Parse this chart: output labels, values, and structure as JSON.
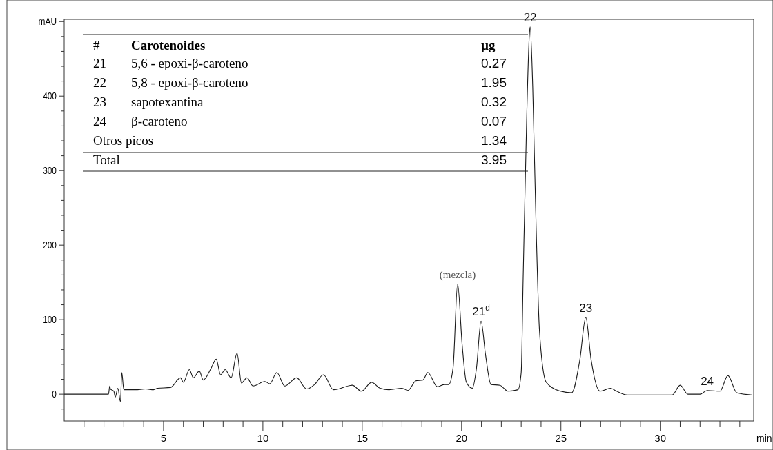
{
  "chart_data": {
    "type": "line",
    "xlim": [
      0,
      34.7
    ],
    "ylim": [
      -36,
      503
    ],
    "xlabel": "min",
    "xticks": [
      {
        "value": 1,
        "label": null
      },
      {
        "value": 2,
        "label": null
      },
      {
        "value": 3,
        "label": null
      },
      {
        "value": 4,
        "label": null
      },
      5,
      {
        "value": 6,
        "label": null
      },
      {
        "value": 7,
        "label": null
      },
      {
        "value": 8,
        "label": null
      },
      {
        "value": 9,
        "label": null
      },
      10,
      {
        "value": 11,
        "label": null
      },
      {
        "value": 12,
        "label": null
      },
      {
        "value": 13,
        "label": null
      },
      {
        "value": 14,
        "label": null
      },
      15,
      {
        "value": 16,
        "label": null
      },
      {
        "value": 17,
        "label": null
      },
      {
        "value": 18,
        "label": null
      },
      {
        "value": 19,
        "label": null
      },
      20,
      {
        "value": 21,
        "label": null
      },
      {
        "value": 22,
        "label": null
      },
      {
        "value": 23,
        "label": null
      },
      {
        "value": 24,
        "label": null
      },
      25,
      {
        "value": 26,
        "label": null
      },
      {
        "value": 27,
        "label": null
      },
      {
        "value": 28,
        "label": null
      },
      {
        "value": 29,
        "label": null
      },
      30,
      {
        "value": 31,
        "label": null
      },
      {
        "value": 32,
        "label": null
      },
      {
        "value": 33,
        "label": null
      },
      {
        "value": 34,
        "label": null
      }
    ],
    "yticks": [
      {
        "value": -20,
        "label": null
      },
      0,
      {
        "value": 20,
        "label": null
      },
      {
        "value": 40,
        "label": null
      },
      {
        "value": 60,
        "label": null
      },
      {
        "value": 80,
        "label": null
      },
      100,
      {
        "value": 120,
        "label": null
      },
      {
        "value": 140,
        "label": null
      },
      {
        "value": 160,
        "label": null
      },
      {
        "value": 180,
        "label": null
      },
      200,
      {
        "value": 220,
        "label": null
      },
      {
        "value": 240,
        "label": null
      },
      {
        "value": 260,
        "label": null
      },
      {
        "value": 280,
        "label": null
      },
      300,
      {
        "value": 320,
        "label": null
      },
      {
        "value": 340,
        "label": null
      },
      {
        "value": 360,
        "label": null
      },
      {
        "value": 380,
        "label": null
      },
      400,
      {
        "value": 420,
        "label": null
      },
      {
        "value": 440,
        "label": null
      },
      {
        "value": 460,
        "label": null
      },
      {
        "value": 480,
        "label": null
      },
      {
        "value": 500,
        "label": "mAU"
      }
    ],
    "grid": false,
    "marker": "none",
    "line_style": "solid",
    "x": [
      0,
      2.23,
      2.29,
      2.33,
      2.5,
      2.57,
      2.7,
      2.83,
      2.9,
      3.0,
      3.58,
      4.1,
      4.5,
      4.7,
      5.35,
      5.85,
      6.0,
      6.3,
      6.5,
      6.8,
      7.0,
      7.4,
      7.65,
      7.87,
      8.1,
      8.4,
      8.7,
      8.92,
      9.2,
      9.5,
      10.1,
      10.35,
      10.7,
      11.1,
      11.7,
      12.2,
      12.6,
      13.05,
      13.55,
      14.5,
      14.96,
      15.47,
      15.9,
      16.35,
      17.0,
      17.3,
      17.7,
      18.05,
      18.3,
      18.78,
      19.12,
      19.35,
      19.57,
      19.8,
      20.03,
      20.24,
      20.54,
      20.75,
      20.98,
      21.2,
      21.48,
      21.93,
      22.33,
      22.84,
      23.0,
      23.1,
      23.28,
      23.41,
      23.45,
      23.58,
      23.72,
      23.92,
      24.26,
      24.97,
      25.54,
      25.95,
      26.25,
      26.52,
      26.96,
      27.5,
      27.8,
      28.34,
      30.6,
      31.0,
      31.39,
      32.0,
      32.36,
      33.0,
      33.4,
      33.85,
      34.6
    ],
    "series": [
      {
        "color": "#1a1a1a",
        "values": [
          0,
          0,
          11,
          7,
          4,
          -4,
          8,
          -10,
          29,
          6,
          6,
          7,
          6,
          8,
          9,
          22,
          16,
          33,
          22,
          31,
          19,
          35,
          47,
          26,
          33,
          22,
          55,
          15,
          22,
          11,
          17,
          14,
          29,
          11,
          22,
          7,
          13,
          26,
          6,
          12,
          4,
          16,
          8,
          6,
          8,
          5,
          18,
          19,
          29,
          10,
          13,
          13,
          35,
          148,
          66,
          16,
          8,
          35,
          98,
          54,
          13,
          12,
          4,
          6,
          29,
          158,
          374,
          482,
          493,
          413,
          258,
          85,
          16,
          4,
          2,
          46,
          103,
          46,
          4,
          8,
          4,
          -1,
          -1,
          12,
          0,
          0,
          5,
          4,
          25,
          2,
          -1
        ]
      }
    ],
    "annotations": [
      {
        "text": "(mezcla)",
        "x": 19.8,
        "y": 148
      },
      {
        "text": "21$^{d}$",
        "x": 20.98,
        "y": 98
      },
      {
        "text": "22",
        "x": 23.45,
        "y": 493
      },
      {
        "text": "23",
        "x": 26.25,
        "y": 103
      },
      {
        "text": "24",
        "x": 32.36,
        "y": 5
      },
      "#\tCarotenoides\tµg",
      "21\t5,6 - epoxi-β-caroteno\t0.27",
      "22\t5,8 - epoxi-β-caroteno\t1.95",
      "23\tsapotexantina\t0.32",
      "24\tβ-caroteno\t0.07",
      "Otros picos\t1.34",
      "Total\t3.95"
    ]
  }
}
